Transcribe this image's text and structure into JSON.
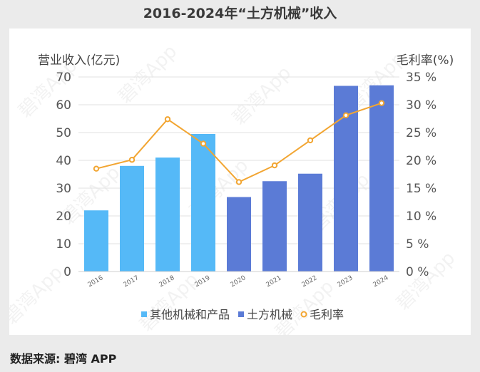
{
  "title": "2016-2024年“土方机械”收入",
  "source": "数据来源: 碧湾 APP",
  "watermark": "碧湾App",
  "chart_data": {
    "type": "bar",
    "categories": [
      "2016",
      "2017",
      "2018",
      "2019",
      "2020",
      "2021",
      "2022",
      "2023",
      "2024"
    ],
    "series": [
      {
        "name": "其他机械和产品",
        "type": "bar",
        "axis": "left",
        "color": "#55b9f7",
        "values": [
          22,
          38,
          41,
          49.5,
          null,
          null,
          null,
          null,
          null
        ]
      },
      {
        "name": "土方机械",
        "type": "bar",
        "axis": "left",
        "color": "#5b7bd6",
        "values": [
          null,
          null,
          null,
          null,
          26.8,
          32.5,
          35.2,
          66.8,
          67
        ]
      },
      {
        "name": "毛利率",
        "type": "line",
        "axis": "right",
        "color": "#f2a531",
        "values": [
          18.5,
          20.1,
          27.4,
          23,
          16.1,
          19.1,
          23.6,
          28.1,
          30.3
        ]
      }
    ],
    "ylabel": "营业收入(亿元)",
    "ylabel_right": "毛利率(%)",
    "ylim": [
      0,
      70
    ],
    "yticks": [
      "0",
      "10",
      "20",
      "30",
      "40",
      "50",
      "60",
      "70"
    ],
    "ylim_right": [
      0,
      35
    ],
    "yticks_right": [
      "0 %",
      "5 %",
      "10 %",
      "15 %",
      "20 %",
      "25 %",
      "30 %",
      "35 %"
    ],
    "grid": true,
    "legend_position": "bottom"
  }
}
